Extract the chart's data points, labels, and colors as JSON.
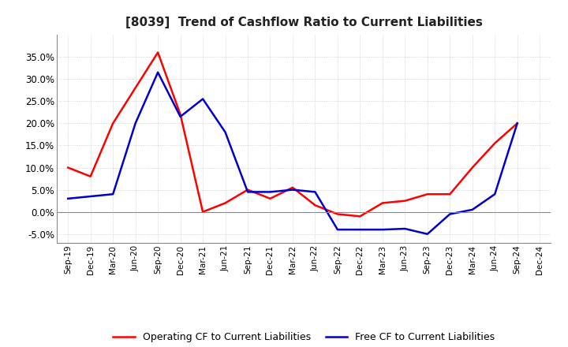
{
  "title": "[8039]  Trend of Cashflow Ratio to Current Liabilities",
  "x_labels": [
    "Sep-19",
    "Dec-19",
    "Mar-20",
    "Jun-20",
    "Sep-20",
    "Dec-20",
    "Mar-21",
    "Jun-21",
    "Sep-21",
    "Dec-21",
    "Mar-22",
    "Jun-22",
    "Sep-22",
    "Dec-22",
    "Mar-23",
    "Jun-23",
    "Sep-23",
    "Dec-23",
    "Mar-24",
    "Jun-24",
    "Sep-24",
    "Dec-24"
  ],
  "operating_cf": [
    0.1,
    0.08,
    0.2,
    0.28,
    0.36,
    0.22,
    0.0,
    0.02,
    0.05,
    0.03,
    0.055,
    0.015,
    -0.005,
    -0.01,
    0.02,
    0.025,
    0.04,
    0.04,
    0.1,
    0.155,
    0.2,
    null
  ],
  "free_cf": [
    0.03,
    0.035,
    0.04,
    0.2,
    0.315,
    0.215,
    0.255,
    0.18,
    0.045,
    0.045,
    0.05,
    0.045,
    -0.04,
    -0.04,
    -0.04,
    -0.038,
    -0.05,
    -0.005,
    0.005,
    0.04,
    0.2,
    null
  ],
  "ylim": [
    -0.07,
    0.4
  ],
  "yticks": [
    -0.05,
    0.0,
    0.05,
    0.1,
    0.15,
    0.2,
    0.25,
    0.3,
    0.35
  ],
  "operating_color": "#FF0000",
  "free_color": "#0000CC",
  "background_color": "#FFFFFF",
  "plot_bg_color": "#FFFFFF",
  "grid_color": "#BBBBBB",
  "title_fontsize": 11,
  "legend_labels": [
    "Operating CF to Current Liabilities",
    "Free CF to Current Liabilities"
  ]
}
